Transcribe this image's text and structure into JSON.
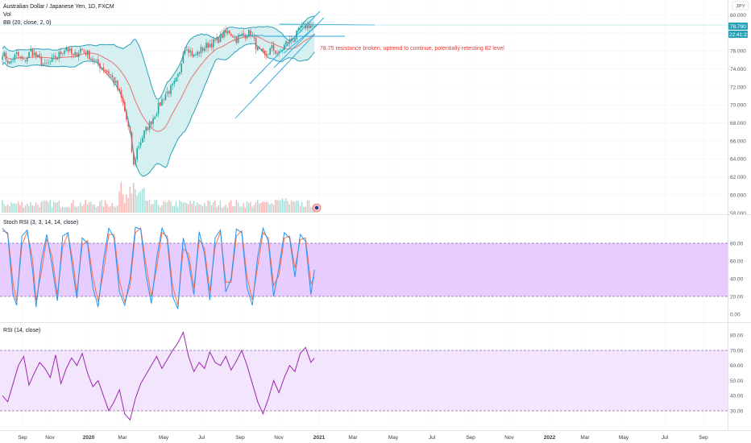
{
  "header": {
    "symbol_line": "Australian Dollar / Japanese Yen, 1D, FXCM",
    "vol_label": "Vol",
    "bb_label": "BB (20, close, 2, 0)",
    "stoch_label": "Stoch RSI (3, 3, 14, 14, close)",
    "rsi_label": "RSI (14, close)",
    "currency": "JPY"
  },
  "price_tags": {
    "last_price": "78.790",
    "countdown": "22:41:21"
  },
  "annotation": "78.75 resistance broken, uptrend to continue, potentially retesting 82 level",
  "colors": {
    "bb_line": "#2aa0b8",
    "bb_fill": "#d6f0f2",
    "bb_basis": "#e57373",
    "candle_up": "#26a69a",
    "candle_down": "#ef5350",
    "stoch_k": "#2196f3",
    "stoch_d": "#ff7043",
    "stoch_band": "#e6ccff",
    "rsi_line": "#9c27b0",
    "rsi_band": "#f3e5fc",
    "drawing": "#29a7d9",
    "note": "#e53935"
  },
  "chart_data": [
    {
      "type": "candlestick",
      "name": "price",
      "y_ticks": [
        "80.000",
        "78.000",
        "76.000",
        "74.000",
        "72.000",
        "70.000",
        "68.000",
        "66.000",
        "64.000",
        "62.000",
        "60.000",
        "58.000"
      ],
      "ylim": [
        58,
        81.4
      ],
      "x_ticks": [
        "Sep",
        "Nov",
        "2020",
        "Mar",
        "May",
        "Jul",
        "Sep",
        "Nov",
        "2021",
        "Mar",
        "May",
        "Jul",
        "Sep",
        "Nov",
        "2022",
        "Mar",
        "May",
        "Jul",
        "Sep"
      ],
      "close_points": [
        [
          0,
          75.8
        ],
        [
          4,
          74.6
        ],
        [
          8,
          75.6
        ],
        [
          12,
          74.8
        ],
        [
          16,
          76.0
        ],
        [
          20,
          75.2
        ],
        [
          24,
          74.3
        ],
        [
          28,
          74.9
        ],
        [
          32,
          75.6
        ],
        [
          36,
          76.4
        ],
        [
          40,
          75.3
        ],
        [
          44,
          76.2
        ],
        [
          48,
          75.7
        ],
        [
          52,
          74.8
        ],
        [
          56,
          74.2
        ],
        [
          60,
          73.6
        ],
        [
          64,
          72.3
        ],
        [
          68,
          70.2
        ],
        [
          72,
          66.5
        ],
        [
          74,
          63.2
        ],
        [
          76,
          65.1
        ],
        [
          80,
          66.9
        ],
        [
          84,
          68.2
        ],
        [
          88,
          69.8
        ],
        [
          92,
          71.2
        ],
        [
          96,
          72.0
        ],
        [
          100,
          73.4
        ],
        [
          102,
          76.2
        ],
        [
          104,
          76.5
        ],
        [
          108,
          75.4
        ],
        [
          112,
          76.1
        ],
        [
          116,
          76.7
        ],
        [
          120,
          77.0
        ],
        [
          124,
          77.7
        ],
        [
          128,
          78.2
        ],
        [
          132,
          77.3
        ],
        [
          136,
          77.8
        ],
        [
          140,
          78.0
        ],
        [
          144,
          76.1
        ],
        [
          148,
          75.4
        ],
        [
          152,
          76.3
        ],
        [
          156,
          75.6
        ],
        [
          160,
          76.9
        ],
        [
          164,
          77.3
        ],
        [
          168,
          78.4
        ],
        [
          172,
          78.9
        ],
        [
          176,
          78.79
        ]
      ]
    },
    {
      "type": "bar",
      "name": "volume"
    },
    {
      "type": "line",
      "name": "stoch_rsi",
      "y_ticks": [
        "80.00",
        "60.00",
        "40.00",
        "20.00",
        "0.00"
      ],
      "ylim": [
        -5,
        100
      ],
      "bands": [
        20,
        80
      ],
      "k_points": [
        [
          0,
          97
        ],
        [
          3,
          90
        ],
        [
          6,
          22
        ],
        [
          8,
          10
        ],
        [
          11,
          88
        ],
        [
          14,
          95
        ],
        [
          17,
          50
        ],
        [
          19,
          8
        ],
        [
          22,
          60
        ],
        [
          25,
          90
        ],
        [
          28,
          55
        ],
        [
          31,
          15
        ],
        [
          34,
          88
        ],
        [
          37,
          92
        ],
        [
          40,
          45
        ],
        [
          42,
          18
        ],
        [
          45,
          86
        ],
        [
          48,
          80
        ],
        [
          51,
          30
        ],
        [
          54,
          8
        ],
        [
          57,
          60
        ],
        [
          60,
          97
        ],
        [
          63,
          86
        ],
        [
          66,
          25
        ],
        [
          69,
          10
        ],
        [
          72,
          40
        ],
        [
          75,
          98
        ],
        [
          78,
          96
        ],
        [
          81,
          44
        ],
        [
          84,
          12
        ],
        [
          87,
          63
        ],
        [
          90,
          97
        ],
        [
          93,
          84
        ],
        [
          96,
          20
        ],
        [
          99,
          6
        ],
        [
          102,
          86
        ],
        [
          105,
          60
        ],
        [
          108,
          22
        ],
        [
          111,
          93
        ],
        [
          114,
          68
        ],
        [
          117,
          16
        ],
        [
          120,
          86
        ],
        [
          123,
          95
        ],
        [
          126,
          25
        ],
        [
          129,
          40
        ],
        [
          132,
          96
        ],
        [
          135,
          92
        ],
        [
          138,
          30
        ],
        [
          141,
          10
        ],
        [
          144,
          65
        ],
        [
          147,
          97
        ],
        [
          150,
          82
        ],
        [
          153,
          20
        ],
        [
          156,
          52
        ],
        [
          159,
          92
        ],
        [
          162,
          86
        ],
        [
          165,
          42
        ],
        [
          168,
          90
        ],
        [
          171,
          82
        ],
        [
          174,
          22
        ],
        [
          176,
          50
        ]
      ],
      "d_points": [
        [
          0,
          94
        ],
        [
          3,
          92
        ],
        [
          6,
          35
        ],
        [
          8,
          14
        ],
        [
          11,
          78
        ],
        [
          14,
          93
        ],
        [
          17,
          62
        ],
        [
          19,
          15
        ],
        [
          22,
          48
        ],
        [
          25,
          85
        ],
        [
          28,
          65
        ],
        [
          31,
          22
        ],
        [
          34,
          76
        ],
        [
          37,
          91
        ],
        [
          40,
          56
        ],
        [
          42,
          24
        ],
        [
          45,
          78
        ],
        [
          48,
          83
        ],
        [
          51,
          42
        ],
        [
          54,
          14
        ],
        [
          57,
          48
        ],
        [
          60,
          90
        ],
        [
          63,
          90
        ],
        [
          66,
          38
        ],
        [
          69,
          14
        ],
        [
          72,
          32
        ],
        [
          75,
          92
        ],
        [
          78,
          97
        ],
        [
          81,
          56
        ],
        [
          84,
          20
        ],
        [
          87,
          52
        ],
        [
          90,
          92
        ],
        [
          93,
          88
        ],
        [
          96,
          32
        ],
        [
          99,
          10
        ],
        [
          102,
          74
        ],
        [
          105,
          68
        ],
        [
          108,
          30
        ],
        [
          111,
          84
        ],
        [
          114,
          74
        ],
        [
          117,
          26
        ],
        [
          120,
          76
        ],
        [
          123,
          93
        ],
        [
          126,
          36
        ],
        [
          129,
          36
        ],
        [
          132,
          88
        ],
        [
          135,
          94
        ],
        [
          138,
          42
        ],
        [
          141,
          16
        ],
        [
          144,
          54
        ],
        [
          147,
          92
        ],
        [
          150,
          86
        ],
        [
          153,
          32
        ],
        [
          156,
          44
        ],
        [
          159,
          86
        ],
        [
          162,
          88
        ],
        [
          165,
          52
        ],
        [
          168,
          84
        ],
        [
          171,
          86
        ],
        [
          174,
          34
        ],
        [
          176,
          42
        ]
      ]
    },
    {
      "type": "line",
      "name": "rsi",
      "y_ticks": [
        "80.00",
        "70.00",
        "60.00",
        "50.00",
        "40.00",
        "30.00"
      ],
      "ylim": [
        26,
        83
      ],
      "bands": [
        30,
        70
      ],
      "points": [
        [
          0,
          40
        ],
        [
          3,
          36
        ],
        [
          6,
          48
        ],
        [
          9,
          60
        ],
        [
          12,
          66
        ],
        [
          15,
          47
        ],
        [
          18,
          55
        ],
        [
          21,
          62
        ],
        [
          24,
          58
        ],
        [
          27,
          52
        ],
        [
          30,
          67
        ],
        [
          33,
          48
        ],
        [
          36,
          58
        ],
        [
          39,
          65
        ],
        [
          42,
          60
        ],
        [
          45,
          68
        ],
        [
          48,
          55
        ],
        [
          51,
          46
        ],
        [
          54,
          50
        ],
        [
          57,
          40
        ],
        [
          60,
          30
        ],
        [
          63,
          36
        ],
        [
          66,
          44
        ],
        [
          69,
          28
        ],
        [
          72,
          24
        ],
        [
          75,
          38
        ],
        [
          78,
          48
        ],
        [
          81,
          54
        ],
        [
          84,
          60
        ],
        [
          87,
          66
        ],
        [
          90,
          58
        ],
        [
          93,
          64
        ],
        [
          96,
          70
        ],
        [
          99,
          75
        ],
        [
          102,
          82
        ],
        [
          105,
          66
        ],
        [
          108,
          56
        ],
        [
          111,
          62
        ],
        [
          114,
          58
        ],
        [
          117,
          69
        ],
        [
          120,
          62
        ],
        [
          123,
          60
        ],
        [
          126,
          66
        ],
        [
          129,
          57
        ],
        [
          132,
          63
        ],
        [
          135,
          70
        ],
        [
          138,
          60
        ],
        [
          141,
          48
        ],
        [
          144,
          36
        ],
        [
          147,
          28
        ],
        [
          150,
          38
        ],
        [
          153,
          50
        ],
        [
          156,
          42
        ],
        [
          159,
          52
        ],
        [
          162,
          60
        ],
        [
          165,
          56
        ],
        [
          168,
          68
        ],
        [
          171,
          72
        ],
        [
          174,
          62
        ],
        [
          176,
          65
        ]
      ]
    }
  ]
}
